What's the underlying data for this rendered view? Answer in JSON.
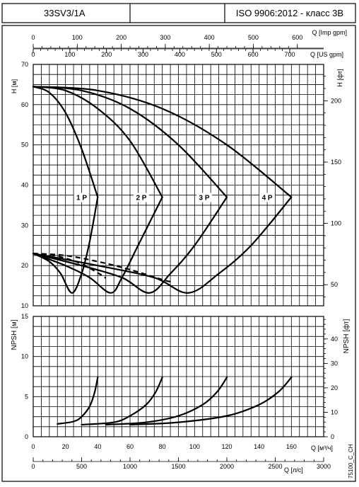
{
  "header": {
    "model": "33SV3/1A",
    "middle": "",
    "standard": "ISO 9906:2012 - класс 3B"
  },
  "footer": {
    "code": "75100_C_CH"
  },
  "axes": {
    "x_imp_label": "Q [Imp gpm]",
    "x_imp_ticks": [
      "0",
      "100",
      "200",
      "300",
      "400",
      "500",
      "600"
    ],
    "x_us_label": "Q [US gpm]",
    "x_us_ticks": [
      "0",
      "100",
      "200",
      "300",
      "400",
      "500",
      "600",
      "700"
    ],
    "y_h_label": "H [м]",
    "y_h_ticks": [
      "10",
      "20",
      "30",
      "40",
      "50",
      "60",
      "70"
    ],
    "y_h_ft_label": "H [фт]",
    "y_h_ft_ticks": [
      "50",
      "100",
      "150",
      "200"
    ],
    "y_npsh_label": "NPSH [м]",
    "y_npsh_ticks": [
      "0",
      "5",
      "10",
      "15"
    ],
    "y_npsh_ft_label": "NPSH [фт]",
    "y_npsh_ft_ticks": [
      "0",
      "10",
      "20",
      "30",
      "40"
    ],
    "x_m3h_label": "Q [м³/ч]",
    "x_m3h_ticks": [
      "0",
      "20",
      "40",
      "60",
      "80",
      "100",
      "120",
      "140",
      "160"
    ],
    "x_ls_label": "Q [л/с]",
    "x_ls_ticks": [
      "0",
      "500",
      "1000",
      "1500",
      "2000",
      "2500",
      "3000"
    ]
  },
  "chart_data": [
    {
      "type": "line",
      "title": "",
      "xlabel": "Q [м³/ч]",
      "ylabel": "H [м]",
      "xlim": [
        0,
        180
      ],
      "ylim": [
        10,
        70
      ],
      "grid": true,
      "series": [
        {
          "name": "1 P",
          "style": "solid",
          "points": [
            [
              0,
              64.5
            ],
            [
              10,
              63
            ],
            [
              20,
              58
            ],
            [
              30,
              49
            ],
            [
              40,
              37
            ]
          ]
        },
        {
          "name": "2 P",
          "style": "solid",
          "points": [
            [
              0,
              64.5
            ],
            [
              20,
              63.5
            ],
            [
              40,
              59
            ],
            [
              60,
              51
            ],
            [
              80,
              37
            ]
          ]
        },
        {
          "name": "3 P",
          "style": "solid",
          "points": [
            [
              0,
              64.5
            ],
            [
              30,
              63.5
            ],
            [
              60,
              59
            ],
            [
              90,
              50
            ],
            [
              120,
              37
            ]
          ]
        },
        {
          "name": "4 P",
          "style": "solid",
          "points": [
            [
              0,
              64.5
            ],
            [
              40,
              63.5
            ],
            [
              80,
              59
            ],
            [
              120,
              50
            ],
            [
              160,
              37
            ]
          ]
        },
        {
          "name": "",
          "style": "solid",
          "points": [
            [
              0,
              23
            ],
            [
              10,
              21
            ],
            [
              17,
              18
            ],
            [
              24,
              13.2
            ],
            [
              30,
              18
            ],
            [
              35,
              26
            ],
            [
              40,
              37
            ]
          ]
        },
        {
          "name": "",
          "style": "solid",
          "points": [
            [
              0,
              23
            ],
            [
              20,
              20
            ],
            [
              35,
              17
            ],
            [
              48,
              13.2
            ],
            [
              55,
              17
            ],
            [
              65,
              25
            ],
            [
              80,
              37
            ]
          ]
        },
        {
          "name": "",
          "style": "solid",
          "points": [
            [
              0,
              23
            ],
            [
              30,
              20
            ],
            [
              55,
              17
            ],
            [
              72,
              13.2
            ],
            [
              85,
              18
            ],
            [
              100,
              25
            ],
            [
              120,
              37
            ]
          ]
        },
        {
          "name": "",
          "style": "solid",
          "points": [
            [
              0,
              23
            ],
            [
              40,
              20
            ],
            [
              75,
              17
            ],
            [
              96,
              13.2
            ],
            [
              115,
              18
            ],
            [
              135,
              25
            ],
            [
              160,
              37
            ]
          ]
        },
        {
          "name": "",
          "style": "dashed",
          "points": [
            [
              0,
              23
            ],
            [
              10,
              22.7
            ],
            [
              20,
              21.8
            ],
            [
              30,
              20.4
            ],
            [
              40,
              18.2
            ],
            [
              45,
              16.9
            ]
          ]
        },
        {
          "name": "",
          "style": "dashed",
          "points": [
            [
              0,
              23
            ],
            [
              20,
              22.5
            ],
            [
              40,
              21
            ],
            [
              60,
              19
            ],
            [
              80,
              16.5
            ],
            [
              85,
              16
            ]
          ]
        }
      ],
      "labels": [
        {
          "text": "1 P",
          "at": [
            30,
            37
          ]
        },
        {
          "text": "2 P",
          "at": [
            67,
            37
          ]
        },
        {
          "text": "3 P",
          "at": [
            106,
            37
          ]
        },
        {
          "text": "4 P",
          "at": [
            145,
            37
          ]
        }
      ]
    },
    {
      "type": "line",
      "title": "",
      "xlabel": "Q [м³/ч]",
      "ylabel": "NPSH [м]",
      "xlim": [
        0,
        180
      ],
      "ylim": [
        0,
        15
      ],
      "grid": true,
      "series": [
        {
          "name": "",
          "style": "solid",
          "points": [
            [
              15,
              1.6
            ],
            [
              25,
              1.9
            ],
            [
              30,
              2.5
            ],
            [
              35,
              3.8
            ],
            [
              38,
              5.5
            ],
            [
              40,
              7.4
            ]
          ]
        },
        {
          "name": "",
          "style": "solid",
          "points": [
            [
              30,
              1.5
            ],
            [
              50,
              1.8
            ],
            [
              60,
              2.6
            ],
            [
              70,
              4.0
            ],
            [
              76,
              5.6
            ],
            [
              80,
              7.4
            ]
          ]
        },
        {
          "name": "",
          "style": "solid",
          "points": [
            [
              45,
              1.5
            ],
            [
              70,
              1.8
            ],
            [
              90,
              2.6
            ],
            [
              105,
              4.0
            ],
            [
              114,
              5.6
            ],
            [
              120,
              7.4
            ]
          ]
        },
        {
          "name": "",
          "style": "solid",
          "points": [
            [
              60,
              1.5
            ],
            [
              90,
              1.8
            ],
            [
              120,
              2.6
            ],
            [
              140,
              4.0
            ],
            [
              152,
              5.6
            ],
            [
              160,
              7.4
            ]
          ]
        }
      ]
    }
  ]
}
